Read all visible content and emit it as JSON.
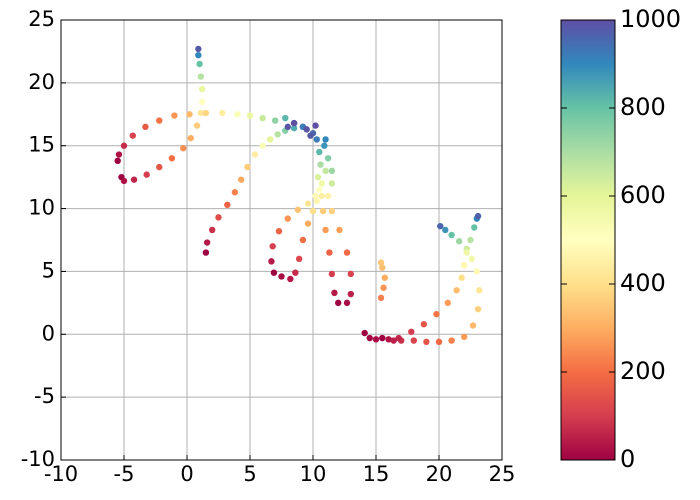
{
  "chart_data": {
    "type": "scatter",
    "xlim": [
      -10,
      25
    ],
    "ylim": [
      -10,
      25
    ],
    "xticks": [
      -10,
      -5,
      0,
      5,
      10,
      15,
      20,
      25
    ],
    "yticks": [
      -10,
      -5,
      0,
      5,
      10,
      15,
      20,
      25
    ],
    "grid": true,
    "colormap": "Spectral",
    "clim": [
      0,
      1000
    ],
    "cticks": [
      0,
      200,
      400,
      600,
      800,
      1000
    ],
    "x": [
      -5.2,
      -5,
      -4.2,
      -3.2,
      -2.2,
      -1.2,
      -0.3,
      0.3,
      0.8,
      1.1,
      1.2,
      1.2,
      1.1,
      1.0,
      0.9,
      0.9,
      -5.5,
      -5.4,
      -5,
      -4.3,
      -3.3,
      -2.2,
      -1,
      0.2,
      1.5,
      2.8,
      4,
      5,
      6,
      7,
      7.8,
      8.5,
      9.2,
      1.5,
      1.6,
      2,
      2.5,
      3.2,
      3.8,
      4.3,
      4.8,
      5.4,
      6,
      6.6,
      7.2,
      7.8,
      8.5,
      9.2,
      6.9,
      6.7,
      6.8,
      7.3,
      8,
      8.8,
      9.6,
      10.2,
      7.5,
      8.2,
      8.6,
      8.9,
      9.2,
      9.6,
      10,
      10.3,
      12,
      11.7,
      11.5,
      11.3,
      11,
      10.8,
      10.7,
      12.7,
      13,
      13,
      12.7,
      12.1,
      11.5,
      11.2,
      10.5,
      10.7,
      10.4,
      11,
      10.6,
      11.2,
      10.5,
      10.9,
      10.3,
      10,
      9.5,
      11.5,
      11.5,
      9.8,
      8.5,
      8,
      10.2,
      11,
      14.1,
      14.5,
      15,
      15.5,
      16,
      16.4,
      15.4,
      15.6,
      15.7,
      15.5,
      15.4,
      17,
      18,
      19,
      20,
      21,
      22,
      22.7,
      23.1,
      23.2,
      23,
      22.6,
      22.2,
      21.6,
      21,
      20.5,
      20.1,
      16.8,
      17.8,
      18.8,
      19.8,
      20.7,
      21.4,
      21.8,
      22,
      22.2,
      22.5,
      22.8,
      23,
      23.1
    ],
    "y": [
      12.5,
      12.2,
      12.3,
      12.7,
      13.3,
      14,
      14.8,
      15.6,
      16.6,
      17.6,
      18.5,
      19.5,
      20.5,
      21.5,
      22.2,
      22.7,
      13.8,
      14.3,
      15,
      15.8,
      16.5,
      17,
      17.4,
      17.5,
      17.6,
      17.6,
      17.5,
      17.4,
      17.2,
      17,
      17.2,
      16.8,
      16.5,
      6.5,
      7.3,
      8.3,
      9.3,
      10.3,
      11.3,
      12.3,
      13.3,
      14.3,
      15,
      15.5,
      15.9,
      16.2,
      16.4,
      16.5,
      4.9,
      5.8,
      7,
      8.2,
      9.2,
      9.9,
      10.4,
      11,
      4.6,
      4.4,
      4.9,
      6,
      7.5,
      8.8,
      9.8,
      10.6,
      2.5,
      3.3,
      4.8,
      6.5,
      8.3,
      9.8,
      11,
      2.5,
      3.2,
      4.8,
      6.5,
      8.3,
      9.8,
      11,
      11.5,
      12,
      12.5,
      13,
      13.5,
      14,
      14.5,
      15,
      15.5,
      16,
      16.3,
      13,
      12,
      15.8,
      16.8,
      16.5,
      16.6,
      15.5,
      0.1,
      -0.3,
      -0.4,
      -0.3,
      -0.4,
      -0.5,
      2.9,
      3.7,
      4.5,
      5.3,
      5.7,
      -0.5,
      -0.5,
      -0.6,
      -0.6,
      -0.5,
      -0.2,
      0.7,
      2,
      3.5,
      5,
      6,
      6.8,
      7.4,
      7.9,
      8.3,
      8.6,
      -0.3,
      0.2,
      0.8,
      1.6,
      2.5,
      3.5,
      4.5,
      5.5,
      6.5,
      7.5,
      8.5,
      9.2,
      9.4
    ],
    "c": [
      0,
      30,
      60,
      100,
      150,
      200,
      250,
      300,
      360,
      420,
      500,
      580,
      680,
      800,
      900,
      980,
      0,
      30,
      70,
      110,
      160,
      210,
      260,
      320,
      380,
      440,
      520,
      580,
      650,
      740,
      820,
      900,
      960,
      0,
      40,
      80,
      130,
      180,
      230,
      290,
      360,
      440,
      520,
      600,
      680,
      760,
      840,
      920,
      0,
      40,
      100,
      180,
      260,
      340,
      420,
      480,
      20,
      40,
      70,
      120,
      200,
      300,
      400,
      470,
      0,
      40,
      100,
      180,
      270,
      360,
      450,
      20,
      50,
      110,
      190,
      280,
      370,
      460,
      500,
      560,
      620,
      660,
      700,
      760,
      820,
      880,
      920,
      960,
      990,
      720,
      640,
      980,
      1000,
      990,
      1000,
      900,
      0,
      10,
      20,
      0,
      30,
      50,
      230,
      260,
      300,
      330,
      350,
      80,
      110,
      150,
      190,
      230,
      270,
      320,
      370,
      420,
      480,
      560,
      640,
      720,
      800,
      880,
      960,
      60,
      100,
      150,
      210,
      270,
      330,
      400,
      470,
      560,
      680,
      800,
      900,
      970
    ]
  }
}
